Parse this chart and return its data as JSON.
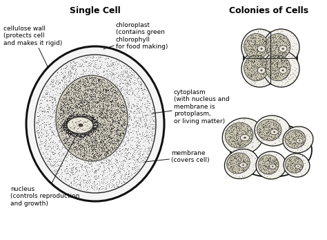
{
  "title_left": "Single Cell",
  "title_right": "Colonies of Cells",
  "bg_color": "#ffffff",
  "label_cellulose": "cellulose wall\n(protects cell\nand makes it rigid)",
  "label_chloroplast": "chloroplast\n(contains green\nchlorophyll\nfor food making)",
  "label_cytoplasm": "cytoplasm\n(with nucleus and\nmembrane is\nprotoplasm,\nor living matter)",
  "label_membrane": "membrane\n(covers cell)",
  "label_nucleus": "nucleus\n(controls reproduction\nand growth)",
  "font_size": 6.5,
  "title_font_size": 9
}
